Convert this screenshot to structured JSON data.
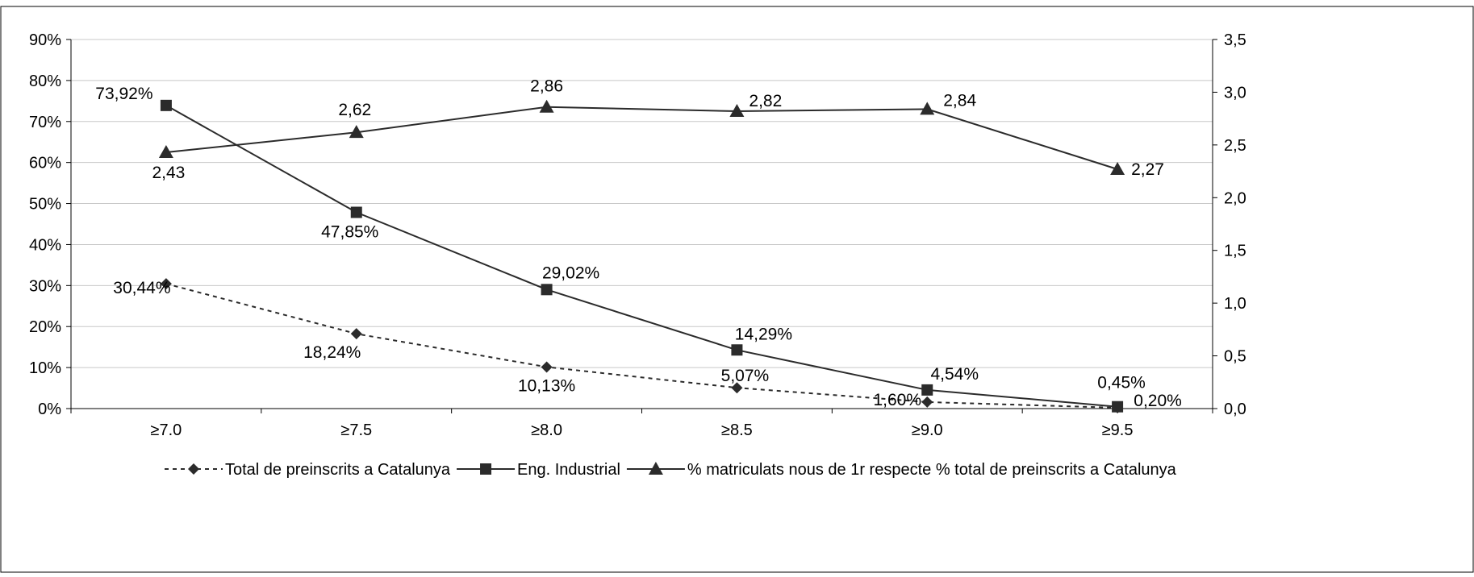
{
  "chart_data": {
    "type": "line",
    "title": "",
    "xlabel": "",
    "ylabel": "",
    "categories": [
      "≥7.0",
      "≥7.5",
      "≥8.0",
      "≥8.5",
      "≥9.0",
      "≥9.5"
    ],
    "ylim": [
      0,
      90
    ],
    "y2lim": [
      0,
      3.5
    ],
    "yticks": [
      "0%",
      "10%",
      "20%",
      "30%",
      "40%",
      "50%",
      "60%",
      "70%",
      "80%",
      "90%"
    ],
    "y2ticks": [
      "0,0",
      "0,5",
      "1,0",
      "1,5",
      "2,0",
      "2,5",
      "3,0",
      "3,5"
    ],
    "grid": true,
    "legend_position": "bottom",
    "series": [
      {
        "name": "Total de preinscrits a Catalunya",
        "axis": "left",
        "marker": "diamond",
        "line": "dashed",
        "values": [
          30.44,
          18.24,
          10.13,
          5.07,
          1.6,
          0.2
        ],
        "labels": [
          "30,44%",
          "18,24%",
          "10,13%",
          "5,07%",
          "1,60%",
          "0,20%"
        ]
      },
      {
        "name": "Eng. Industrial",
        "axis": "left",
        "marker": "square",
        "line": "solid",
        "values": [
          73.92,
          47.85,
          29.02,
          14.29,
          4.54,
          0.45
        ],
        "labels": [
          "73,92%",
          "47,85%",
          "29,02%",
          "14,29%",
          "4,54%",
          "0,45%"
        ]
      },
      {
        "name": "% matriculats nous de 1r respecte % total de preinscrits a Catalunya",
        "axis": "right",
        "marker": "triangle",
        "line": "solid",
        "values": [
          2.43,
          2.62,
          2.86,
          2.82,
          2.84,
          2.27
        ],
        "labels": [
          "2,43",
          "2,62",
          "2,86",
          "2,82",
          "2,84",
          "2,27"
        ]
      }
    ]
  }
}
